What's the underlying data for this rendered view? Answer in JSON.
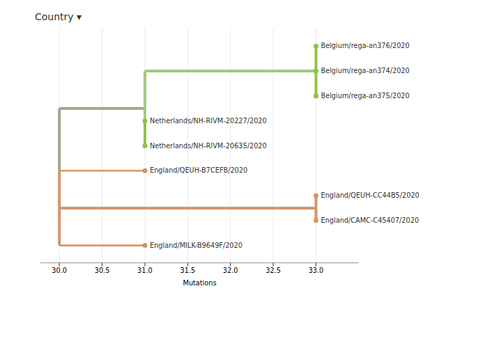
{
  "chart_data": {
    "type": "tree",
    "title": "Country ▾",
    "xlabel": "Mutations",
    "xlim": [
      29.78,
      33.5
    ],
    "xticks": [
      {
        "value": 30.0,
        "label": "30.0"
      },
      30.5,
      {
        "value": 31.0,
        "label": "31.0"
      },
      31.5,
      {
        "value": 32.0,
        "label": "32.0"
      },
      32.5,
      {
        "value": 33.0,
        "label": "33.0"
      }
    ],
    "grid": true,
    "tick_labels": "x",
    "tree": {
      "x": 30.0,
      "children": [
        {
          "x": 31.0,
          "color": "#9aaa88",
          "children": [
            {
              "x": 33.0,
              "color": "#a5c882",
              "children": [
                {
                  "name": "Belgium/rega-an376/2020",
                  "x": 33.0,
                  "color": "#8bc34a"
                },
                {
                  "name": "Belgium/rega-an374/2020",
                  "x": 33.0,
                  "color": "#8bc34a"
                },
                {
                  "name": "Belgium/rega-an375/2020",
                  "x": 33.0,
                  "color": "#8bc34a"
                }
              ]
            },
            {
              "name": "Netherlands/NH-RIVM-20227/2020",
              "x": 31.0,
              "color": "#8bc34a"
            },
            {
              "name": "Netherlands/NH-RIVM-20635/2020",
              "x": 31.0,
              "color": "#8bc34a"
            }
          ]
        },
        {
          "name": "England/QEUH-B7CEFB/2020",
          "x": 31.0,
          "color": "#d4956a"
        },
        {
          "x": 33.0,
          "color": "#d4956a",
          "children": [
            {
              "name": "England/QEUH-CC44B5/2020",
              "x": 33.0,
              "color": "#d4956a"
            },
            {
              "name": "England/CAMC-C45407/2020",
              "x": 33.0,
              "color": "#d4956a"
            }
          ]
        },
        {
          "name": "England/MILK-B9649F/2020",
          "x": 31.0,
          "color": "#d4956a"
        }
      ]
    }
  }
}
